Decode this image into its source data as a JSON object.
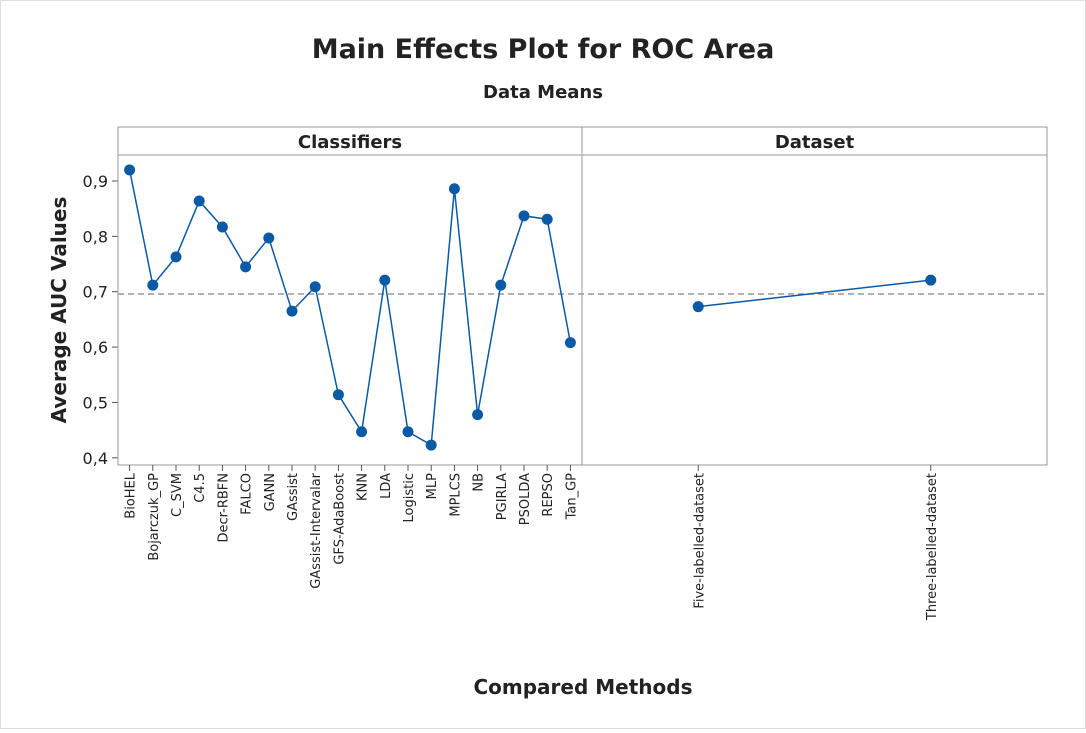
{
  "chart_data": {
    "type": "line",
    "title": "Main Effects Plot for ROC Area",
    "subtitle": "Data Means",
    "x_label": "Compared Methods",
    "y_label": "Average AUC Values",
    "color": "#0b5aa6",
    "ylim": [
      0.387,
      0.947
    ],
    "yticks": [
      {
        "value": 0.4,
        "label": "0,4"
      },
      {
        "value": 0.5,
        "label": "0,5"
      },
      {
        "value": 0.6,
        "label": "0,6"
      },
      {
        "value": 0.7,
        "label": "0,7"
      },
      {
        "value": 0.8,
        "label": "0,8"
      },
      {
        "value": 0.9,
        "label": "0,9"
      }
    ],
    "reference_line": 0.696,
    "panels": [
      {
        "title": "Classifiers",
        "categories": [
          "BioHEL",
          "Bojarczuk_GP",
          "C_SVM",
          "C4.5",
          "Decr-RBFN",
          "FALCO",
          "GANN",
          "GAssist",
          "GAssist-Intervalar",
          "GFS-AdaBoost",
          "KNN",
          "LDA",
          "Logistic",
          "MLP",
          "MPLCS",
          "NB",
          "PGIRLA",
          "PSOLDA",
          "REPSO",
          "Tan_GP"
        ],
        "values": [
          0.92,
          0.712,
          0.763,
          0.864,
          0.817,
          0.745,
          0.797,
          0.665,
          0.709,
          0.514,
          0.447,
          0.721,
          0.447,
          0.423,
          0.886,
          0.478,
          0.712,
          0.837,
          0.831,
          0.608
        ]
      },
      {
        "title": "Dataset",
        "categories": [
          "Five-labelled-dataset",
          "Three-labelled-dataset"
        ],
        "values": [
          0.673,
          0.721
        ]
      }
    ]
  }
}
